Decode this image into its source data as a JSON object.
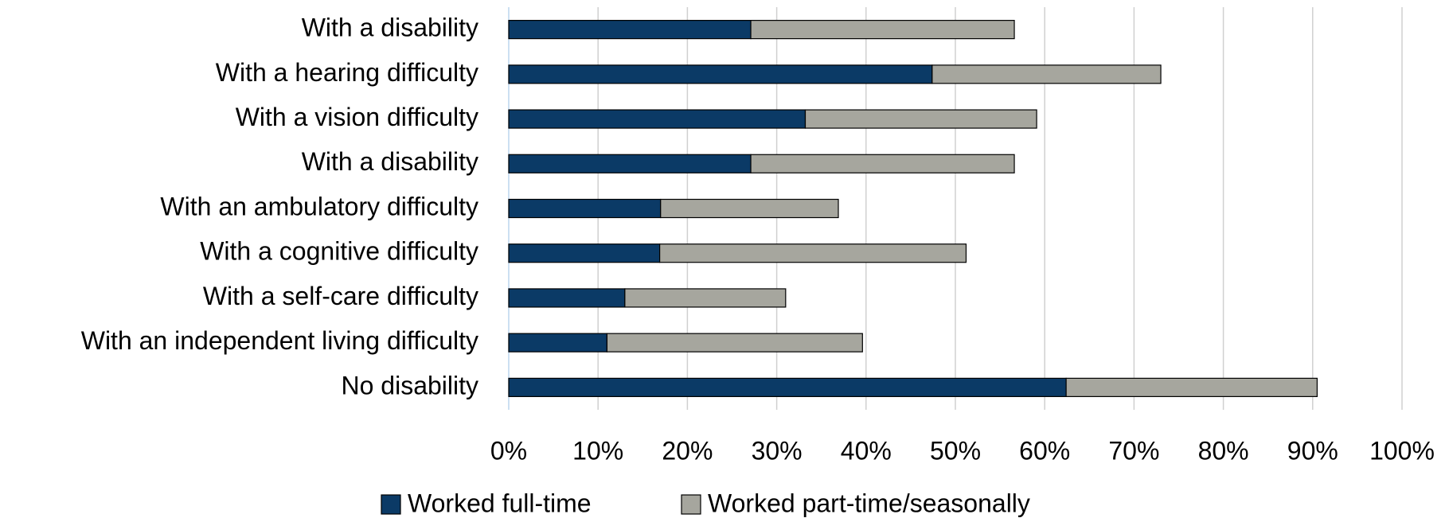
{
  "chart_data": {
    "type": "stacked-barh",
    "categories": [
      "With a disability",
      "With a hearing difficulty",
      "With a vision difficulty",
      "With a disability",
      "With an ambulatory difficulty",
      "With a cognitive difficulty",
      "With a self-care difficulty",
      "With an independent living difficulty",
      "No disability"
    ],
    "series": [
      {
        "name": "Worked full-time",
        "color": "#0b3a66",
        "values": [
          27.1,
          47.4,
          33.2,
          27.1,
          17.0,
          16.9,
          13.0,
          11.0,
          62.4
        ]
      },
      {
        "name": "Worked part-time/seasonally",
        "color": "#a6a69e",
        "values": [
          29.5,
          25.6,
          25.9,
          29.5,
          19.9,
          34.3,
          18.0,
          28.6,
          28.1
        ]
      }
    ],
    "xlim": [
      0,
      100
    ],
    "xticks": [
      {
        "value": 0,
        "label": "0%"
      },
      {
        "value": 10,
        "label": "10%"
      },
      {
        "value": 20,
        "label": "20%"
      },
      {
        "value": 30,
        "label": "30%"
      },
      {
        "value": 40,
        "label": "40%"
      },
      {
        "value": 50,
        "label": "50%"
      },
      {
        "value": 60,
        "label": "60%"
      },
      {
        "value": 70,
        "label": "70%"
      },
      {
        "value": 80,
        "label": "80%"
      },
      {
        "value": 90,
        "label": "90%"
      },
      {
        "value": 100,
        "label": "100%"
      }
    ],
    "grid": true,
    "legend": "bottom"
  }
}
